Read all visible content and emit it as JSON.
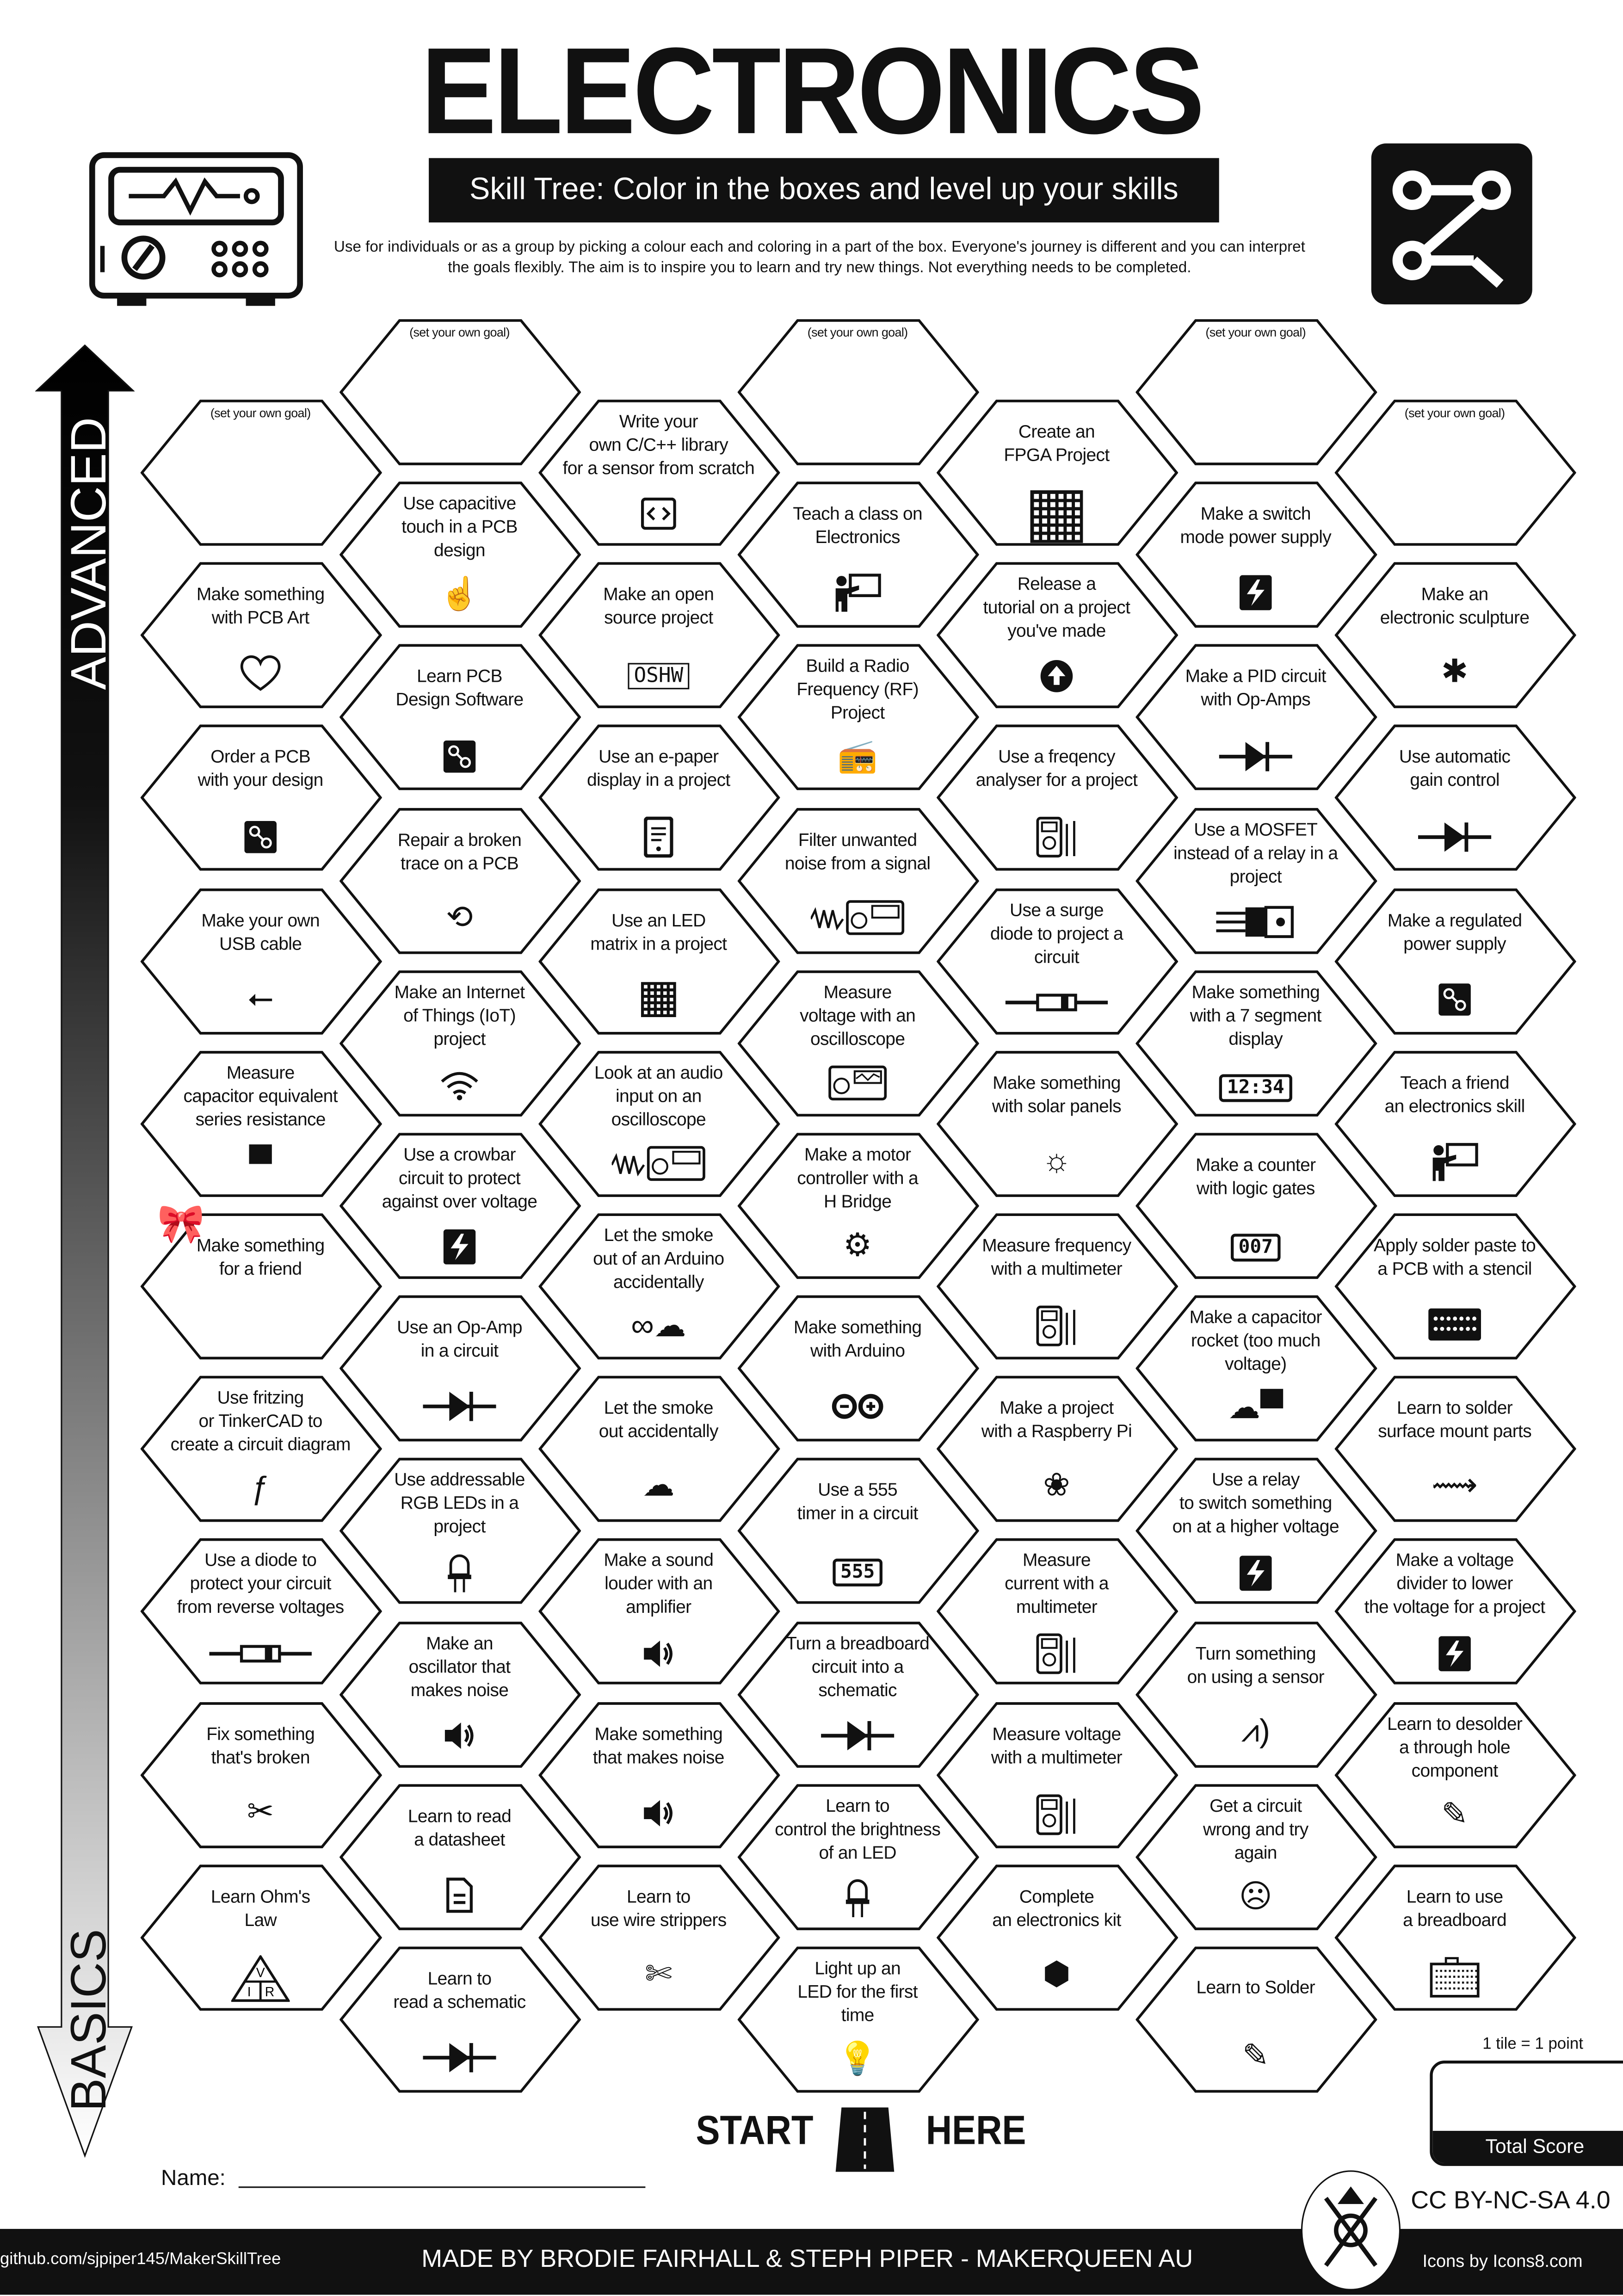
{
  "header": {
    "title": "ELECTRONICS",
    "subtitle": "Skill Tree:  Color in the boxes and level up your skills",
    "description": "Use for individuals or as a group by picking a colour each and coloring in a part of the box.  Everyone's journey is different and you can interpret the goals flexibly.  The aim is to inspire you to learn and try new things. Not everything needs to be completed."
  },
  "axis": {
    "top_label": "ADVANCED",
    "bottom_label": "BASICS"
  },
  "columns": [
    [
      {
        "text": "(set your own goal)",
        "goal": true
      },
      {
        "text": "Make something\nwith PCB Art",
        "icon": "heart"
      },
      {
        "text": "Order a PCB\nwith your design",
        "icon": "pcb"
      },
      {
        "text": "Make your own\nUSB cable",
        "icon": "usb"
      },
      {
        "text": "Measure\ncapacitor equivalent\nseries resistance",
        "icon": "capacitor"
      },
      {
        "text": "Make something\nfor a friend",
        "icon": "gift-bow"
      },
      {
        "text": "Use fritzing\nor TinkerCAD to\ncreate a circuit diagram",
        "icon": "fritzing"
      },
      {
        "text": "Use a diode to\nprotect your circuit\nfrom reverse voltages",
        "icon": "diode-component"
      },
      {
        "text": "Fix something\nthat's broken",
        "icon": "tools"
      },
      {
        "text": "Learn Ohm's\nLaw",
        "icon": "ohms-law-triangle"
      }
    ],
    [
      {
        "text": "(set your own goal)",
        "goal": true
      },
      {
        "text": "Use capacitive\ntouch in a PCB\ndesign",
        "icon": "touch"
      },
      {
        "text": "Learn PCB\nDesign Software",
        "icon": "pcb"
      },
      {
        "text": "Repair a broken\ntrace on a PCB",
        "icon": "repair"
      },
      {
        "text": "Make an Internet\nof Things (IoT)\nproject",
        "icon": "wifi"
      },
      {
        "text": "Use a crowbar\ncircuit to protect\nagainst over voltage",
        "icon": "lightning"
      },
      {
        "text": "Use an Op-Amp\nin a circuit",
        "icon": "diode-symbol"
      },
      {
        "text": "Use addressable\nRGB LEDs in a\nproject",
        "icon": "led"
      },
      {
        "text": "Make an\noscillator that\nmakes noise",
        "icon": "speaker"
      },
      {
        "text": "Learn to read\na datasheet",
        "icon": "document"
      },
      {
        "text": "Learn to\nread a schematic",
        "icon": "diode-symbol"
      }
    ],
    [
      {
        "text": "Write your\nown C/C++ library\nfor a sensor from scratch",
        "icon": "code"
      },
      {
        "text": "Make an open\nsource project",
        "icon": "oshw",
        "icon_text": "OSHW"
      },
      {
        "text": "Use an e-paper\ndisplay in a project",
        "icon": "ereader"
      },
      {
        "text": "Use an LED\nmatrix in a project",
        "icon": "led-matrix"
      },
      {
        "text": "Look at an audio\ninput on an\noscilloscope",
        "icon": "oscilloscope-signal"
      },
      {
        "text": "Let the smoke\nout of an Arduino\naccidentally",
        "icon": "arduino-smoke"
      },
      {
        "text": "Let the smoke\nout accidentally",
        "icon": "smoke"
      },
      {
        "text": "Make a sound\nlouder with an\namplifier",
        "icon": "speaker"
      },
      {
        "text": "Make something\nthat makes noise",
        "icon": "speaker"
      },
      {
        "text": "Learn to\nuse wire strippers",
        "icon": "wire-stripper"
      }
    ],
    [
      {
        "text": "(set your own goal)",
        "goal": true
      },
      {
        "text": "Teach a class on\nElectronics",
        "icon": "teacher"
      },
      {
        "text": "Build a Radio\nFrequency (RF)\nProject",
        "icon": "radio"
      },
      {
        "text": "Filter unwanted\nnoise from a signal",
        "icon": "oscilloscope-signal"
      },
      {
        "text": "Measure\nvoltage with an\noscilloscope",
        "icon": "oscilloscope"
      },
      {
        "text": "Make a motor\ncontroller with a\nH Bridge",
        "icon": "motor"
      },
      {
        "text": "Make something\nwith Arduino",
        "icon": "arduino"
      },
      {
        "text": "Use a 555\ntimer in a circuit",
        "icon": "chip-555",
        "icon_text": "555"
      },
      {
        "text": "Turn a breadboard\ncircuit into a\nschematic",
        "icon": "diode-symbol"
      },
      {
        "text": "Learn to\ncontrol the brightness\nof an LED",
        "icon": "led"
      },
      {
        "text": "Light up an\nLED for the first\ntime",
        "icon": "led-party"
      }
    ],
    [
      {
        "text": "Create an\nFPGA Project",
        "icon": "fpga"
      },
      {
        "text": "Release a\ntutorial on a project\nyou've made",
        "icon": "upload"
      },
      {
        "text": "Use a freqency\nanalyser for a project",
        "icon": "multimeter"
      },
      {
        "text": "Use a surge\ndiode to project a\ncircuit",
        "icon": "diode-component"
      },
      {
        "text": "Make something\nwith solar panels",
        "icon": "solar-panel"
      },
      {
        "text": "Measure frequency\nwith a multimeter",
        "icon": "multimeter"
      },
      {
        "text": "Make a project\nwith a Raspberry Pi",
        "icon": "raspberry-pi"
      },
      {
        "text": "Measure\ncurrent with a\nmultimeter",
        "icon": "multimeter"
      },
      {
        "text": "Measure voltage\nwith a multimeter",
        "icon": "multimeter"
      },
      {
        "text": "Complete\nan electronics kit",
        "icon": "box"
      }
    ],
    [
      {
        "text": "(set your own goal)",
        "goal": true
      },
      {
        "text": "Make a switch\nmode power supply",
        "icon": "lightning"
      },
      {
        "text": "Make a PID circuit\nwith Op-Amps",
        "icon": "diode-symbol"
      },
      {
        "text": "Use a MOSFET\ninstead of a relay in a\nproject",
        "icon": "mosfet"
      },
      {
        "text": "Make something\nwith a 7 segment\ndisplay",
        "icon": "seven-segment",
        "icon_text": "12:34"
      },
      {
        "text": "Make a counter\nwith logic gates",
        "icon": "counter",
        "icon_text": "007"
      },
      {
        "text": "Make a capacitor\nrocket (too much\nvoltage)",
        "icon": "smoke-capacitor"
      },
      {
        "text": "Use a relay\nto switch something\non at a higher voltage",
        "icon": "lightning"
      },
      {
        "text": "Turn something\non using a sensor",
        "icon": "sensor"
      },
      {
        "text": "Get a circuit\nwrong and try\nagain",
        "icon": "facepalm"
      },
      {
        "text": "Learn to Solder",
        "icon": "soldering"
      }
    ],
    [
      {
        "text": "(set your own goal)",
        "goal": true
      },
      {
        "text": "Make an\nelectronic sculpture",
        "icon": "sculpture"
      },
      {
        "text": "Use automatic\ngain control",
        "icon": "diode-symbol"
      },
      {
        "text": "Make a regulated\npower supply",
        "icon": "pcb"
      },
      {
        "text": "Teach a friend\nan electronics skill",
        "icon": "teacher"
      },
      {
        "text": "Apply solder paste to\na PCB with a stencil",
        "icon": "stencil"
      },
      {
        "text": "Learn to solder\nsurface mount parts",
        "icon": "soldering-iron"
      },
      {
        "text": "Make a voltage\ndivider to lower\nthe voltage for a project",
        "icon": "lightning"
      },
      {
        "text": "Learn to desolder\na through hole\ncomponent",
        "icon": "desolder"
      },
      {
        "text": "Learn to use\na breadboard",
        "icon": "breadboard"
      }
    ]
  ],
  "start": {
    "left": "START",
    "right": "HERE"
  },
  "name_label": "Name:",
  "score": {
    "rule": "1 tile = 1 point",
    "label": "Total Score"
  },
  "license": "CC BY-NC-SA 4.0",
  "footer": {
    "github": "github.com/sjpiper145/MakerSkillTree",
    "credits": "MADE BY BRODIE FAIRHALL & STEPH PIPER  -  MAKERQUEEN AU",
    "icons_credit": "Icons by Icons8.com"
  },
  "colors": {
    "ink": "#111111",
    "paper": "#ffffff"
  }
}
